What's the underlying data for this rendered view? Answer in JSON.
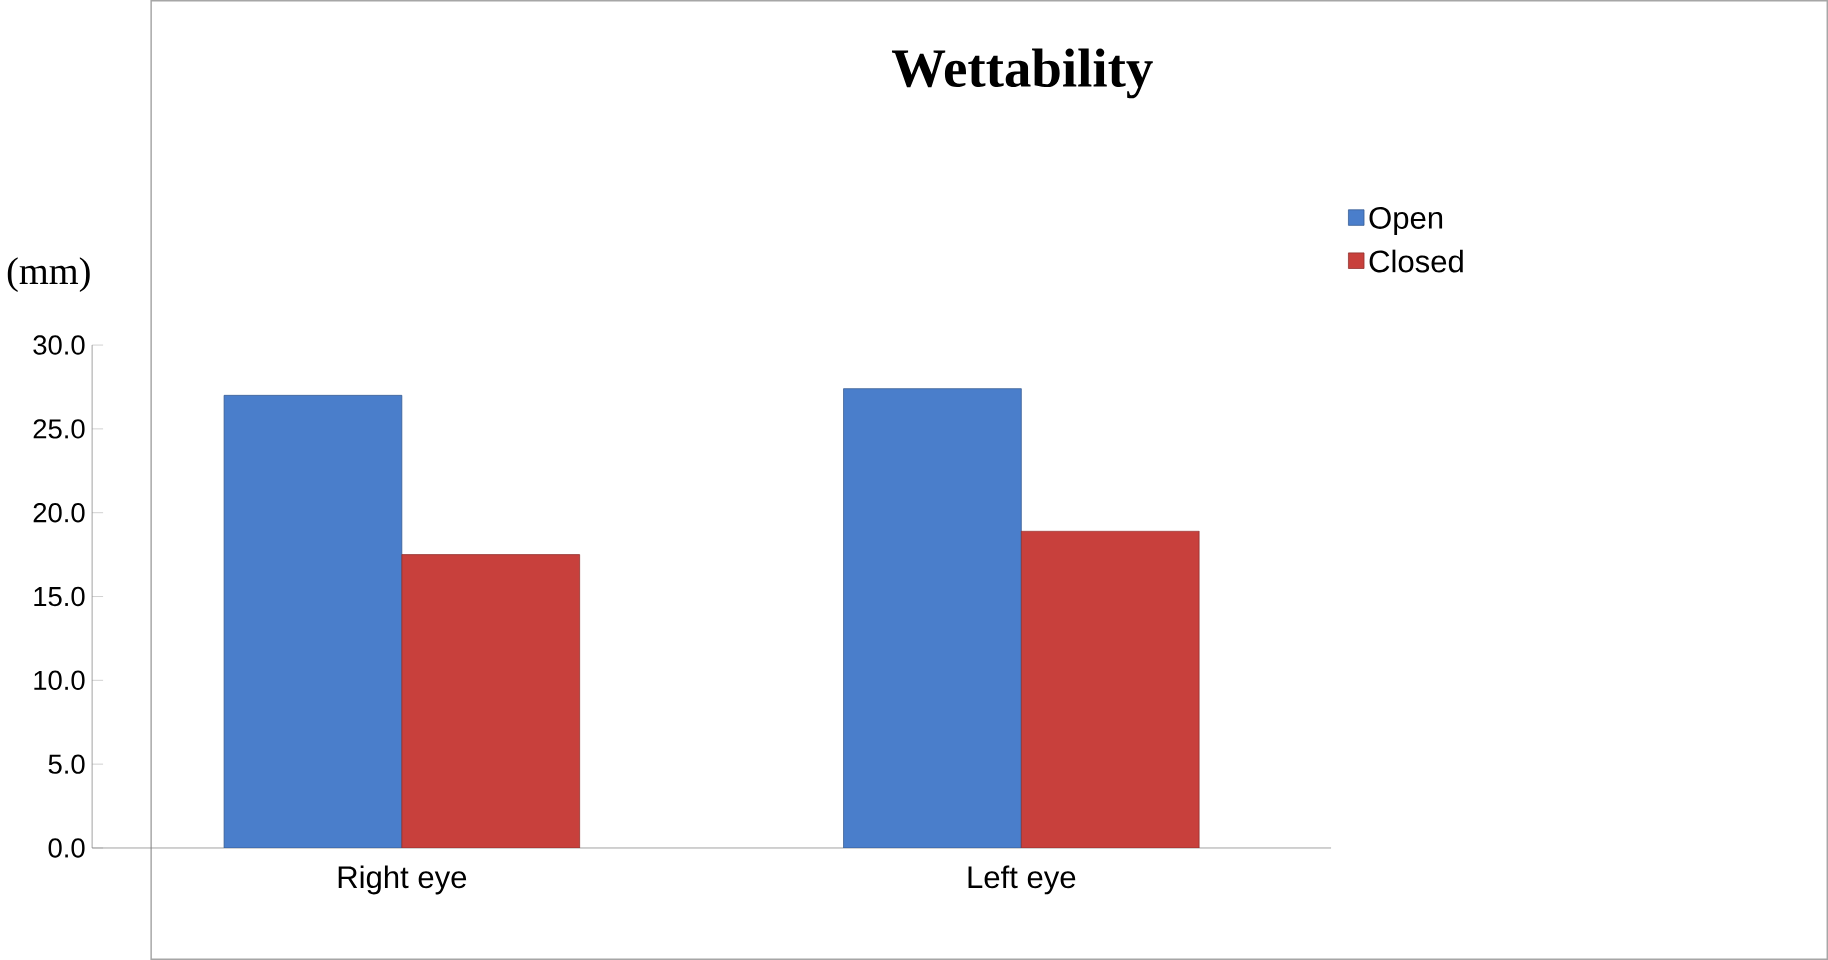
{
  "chart_data": {
    "type": "bar",
    "title": "Wettability",
    "ylabel": "(mm)",
    "categories": [
      "Right eye",
      "Left eye"
    ],
    "series": [
      {
        "name": "Open",
        "color": "#4a7ecb",
        "values": [
          27.0,
          27.4
        ]
      },
      {
        "name": "Closed",
        "color": "#c8403c",
        "values": [
          17.5,
          18.9
        ]
      }
    ],
    "ylim": [
      0,
      30
    ],
    "yticks": [
      {
        "value": 0,
        "label": "0.0"
      },
      {
        "value": 5,
        "label": "5.0"
      },
      {
        "value": 10,
        "label": "10.0"
      },
      {
        "value": 15,
        "label": "15.0"
      },
      {
        "value": 20,
        "label": "20.0"
      },
      {
        "value": 25,
        "label": "25.0"
      },
      {
        "value": 30,
        "label": "30.0"
      }
    ],
    "grid": false,
    "legend": "top right"
  }
}
